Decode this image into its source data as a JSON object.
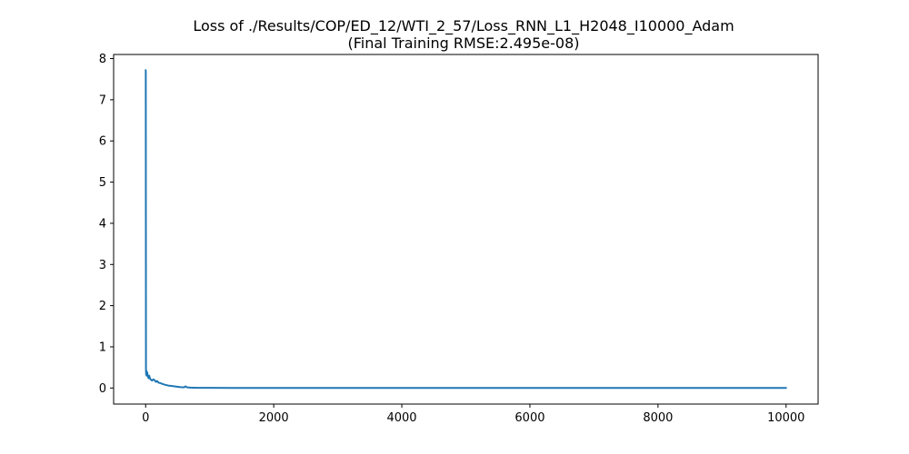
{
  "chart_data": {
    "type": "line",
    "title": "Loss of ./Results/COP/ED_12/WTI_2_57/Loss_RNN_L1_H2048_I10000_Adam",
    "subtitle": "(Final Training RMSE:2.495e-08)",
    "xlabel": "",
    "ylabel": "",
    "xlim": [
      -500,
      10500
    ],
    "ylim": [
      -0.39,
      8.1
    ],
    "xticks": [
      0,
      2000,
      4000,
      6000,
      8000,
      10000
    ],
    "xtick_labels": [
      "0",
      "2000",
      "4000",
      "6000",
      "8000",
      "10000"
    ],
    "yticks": [
      0,
      1,
      2,
      3,
      4,
      5,
      6,
      7,
      8
    ],
    "ytick_labels": [
      "0",
      "1",
      "2",
      "3",
      "4",
      "5",
      "6",
      "7",
      "8"
    ],
    "grid": false,
    "line_color": "#1f77b4",
    "series": [
      {
        "x": [
          0,
          2,
          5,
          8,
          12,
          18,
          25,
          35,
          45,
          55,
          70,
          85,
          100,
          120,
          140,
          160,
          180,
          200,
          230,
          260,
          300,
          350,
          400,
          450,
          500,
          550,
          600,
          620,
          650,
          700,
          800,
          1000,
          2000,
          4000,
          6000,
          8000,
          10000
        ],
        "y": [
          7.72,
          7.7,
          0.45,
          0.32,
          0.42,
          0.3,
          0.38,
          0.28,
          0.24,
          0.3,
          0.22,
          0.2,
          0.18,
          0.21,
          0.19,
          0.15,
          0.17,
          0.13,
          0.12,
          0.1,
          0.08,
          0.06,
          0.05,
          0.04,
          0.03,
          0.02,
          0.015,
          0.04,
          0.015,
          0.01,
          0.005,
          0.003,
          0.001,
          0.0005,
          0.0002,
          0.0001,
          0.0001
        ]
      }
    ]
  }
}
